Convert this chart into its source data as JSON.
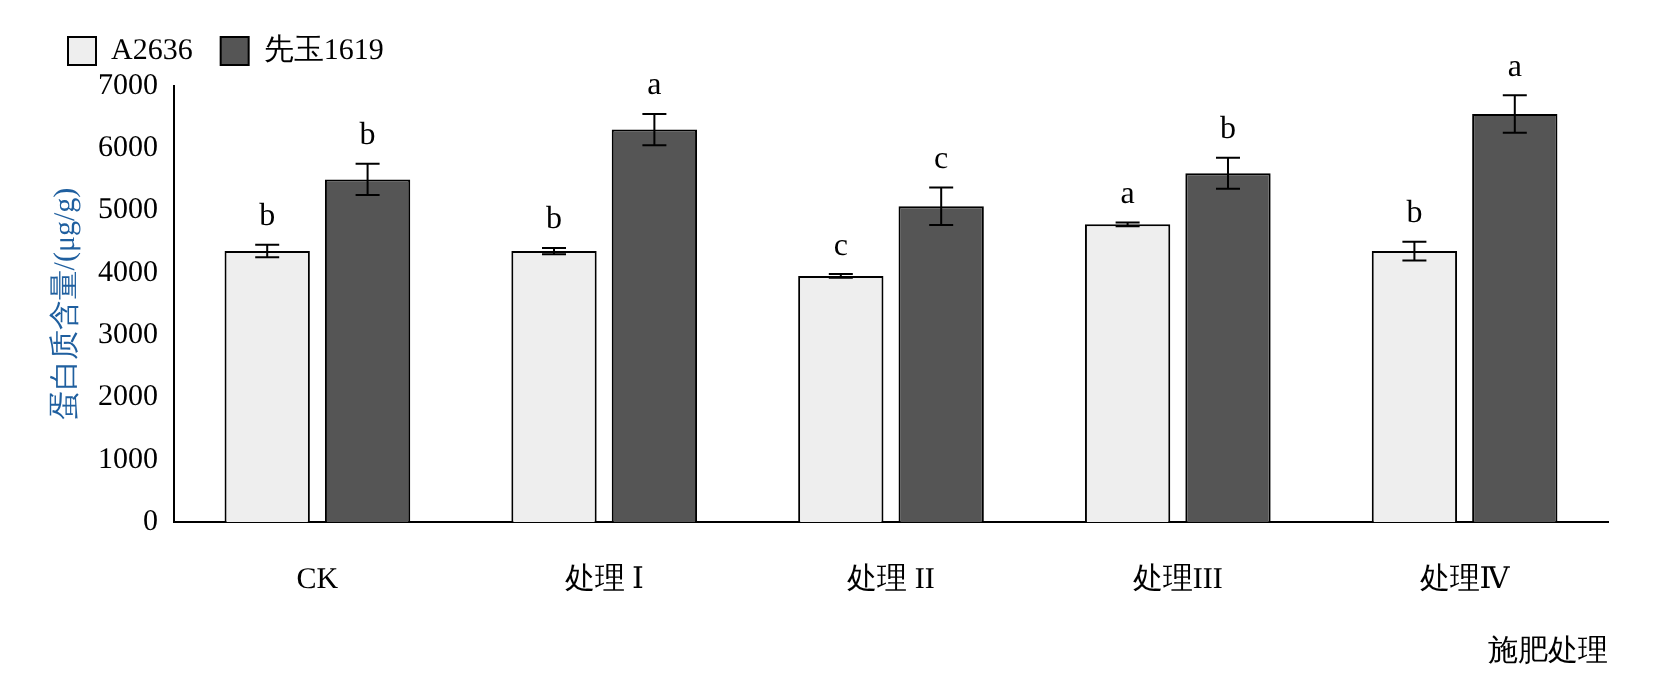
{
  "chart_data": {
    "type": "bar",
    "xlabel": "施肥处理",
    "ylabel": "蛋白质含量/(μg/g)",
    "categories": [
      "CK",
      "处理 Ⅰ",
      "处理 II",
      "处理III",
      "处理Ⅳ"
    ],
    "series": [
      {
        "name": "A2636",
        "color": "#eeeeee",
        "values": [
          4350,
          4350,
          3950,
          4780,
          4350
        ],
        "errors": [
          100,
          50,
          30,
          30,
          150
        ],
        "value_labels": [
          "b",
          "b",
          "c",
          "a",
          "b"
        ]
      },
      {
        "name": "先玉1619",
        "color": "#555555",
        "values": [
          5500,
          6300,
          5070,
          5600,
          6550
        ],
        "errors": [
          250,
          250,
          300,
          250,
          300
        ],
        "value_labels": [
          "b",
          "a",
          "c",
          "b",
          "a"
        ]
      }
    ],
    "ylim": [
      0,
      7000
    ],
    "yticks": [
      0,
      1000,
      2000,
      3000,
      4000,
      5000,
      6000,
      7000
    ],
    "grid": false,
    "legend": "top left"
  }
}
